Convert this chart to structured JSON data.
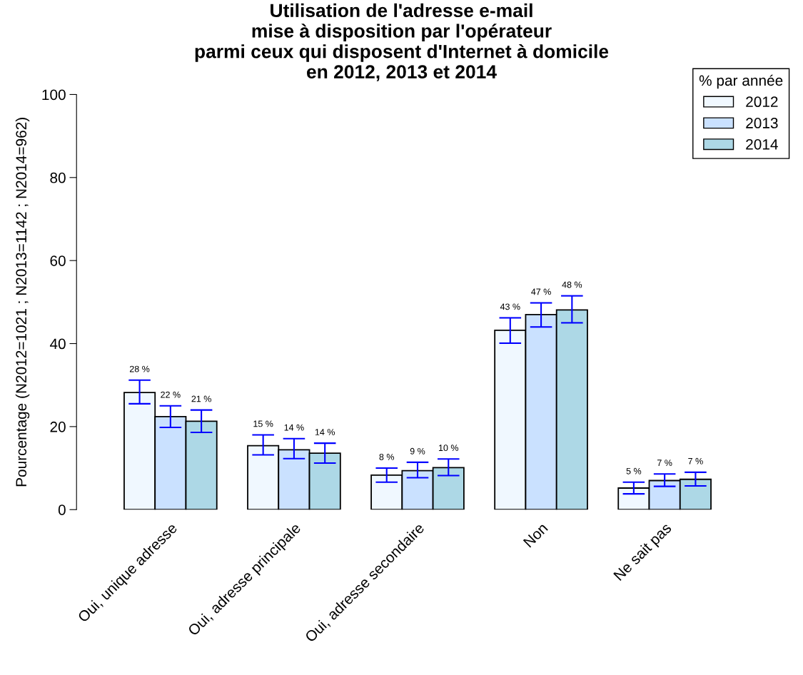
{
  "chart_data": {
    "type": "bar",
    "title": "Utilisation de l'adresse e-mail\nmise à disposition par l'opérateur\nparmi ceux qui disposent d'Internet à domicile\nen 2012, 2013 et 2014",
    "ylabel": "Pourcentage (N2012=1021 ; N2013=1142 ; N2014=962)",
    "categories": [
      "Oui, unique adresse",
      "Oui, adresse principale",
      "Oui, adresse secondaire",
      "Non",
      "Ne sait pas"
    ],
    "series": [
      {
        "name": "2012",
        "color": "#f0f8ff",
        "values": [
          28.2,
          15.4,
          8.3,
          43.2,
          5.2
        ],
        "errors": [
          [
            25.5,
            31.2
          ],
          [
            13.2,
            18.0
          ],
          [
            6.6,
            10.0
          ],
          [
            40.1,
            46.2
          ],
          [
            3.8,
            6.6
          ]
        ],
        "value_labels": [
          "28 %",
          "15 %",
          "8 %",
          "43 %",
          "5 %"
        ]
      },
      {
        "name": "2013",
        "color": "#cae1ff",
        "values": [
          22.4,
          14.4,
          9.4,
          47.0,
          7.0
        ],
        "errors": [
          [
            19.8,
            25.0
          ],
          [
            12.3,
            17.1
          ],
          [
            7.7,
            11.4
          ],
          [
            44.0,
            49.8
          ],
          [
            5.6,
            8.6
          ]
        ],
        "value_labels": [
          "22 %",
          "14 %",
          "9 %",
          "47 %",
          "7 %"
        ]
      },
      {
        "name": "2014",
        "color": "#add8e6",
        "values": [
          21.3,
          13.6,
          10.1,
          48.1,
          7.3
        ],
        "errors": [
          [
            18.6,
            24.0
          ],
          [
            11.2,
            16.0
          ],
          [
            8.2,
            12.2
          ],
          [
            45.0,
            51.5
          ],
          [
            5.7,
            9.0
          ]
        ],
        "value_labels": [
          "21 %",
          "14 %",
          "10 %",
          "48 %",
          "7 %"
        ]
      }
    ],
    "legend_title": "% par année",
    "legend": "top right",
    "ylim": [
      0,
      100
    ],
    "yticks": [
      0,
      20,
      40,
      60,
      80,
      100
    ],
    "grid": false
  }
}
